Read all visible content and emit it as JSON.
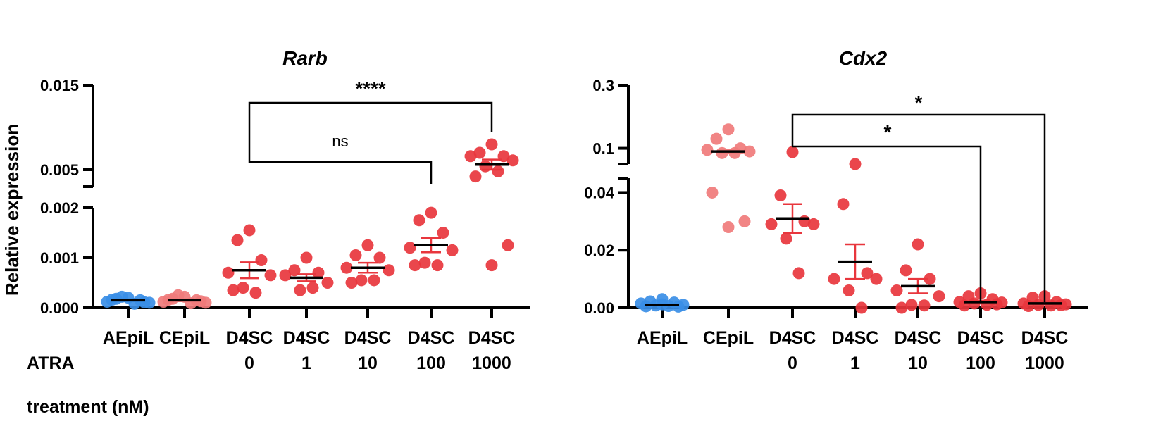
{
  "chart_data": [
    {
      "type": "scatter",
      "title": "Rarb",
      "ylabel": "Relative expression",
      "xlabel": "ATRA treatment (nM)",
      "xlabel_lines": [
        "ATRA",
        "treatment (nM)"
      ],
      "categories": [
        {
          "name": "AEpiL",
          "dose": "",
          "color": "#3a8ee6",
          "mean": 0.00015,
          "sem": 2e-05,
          "points": [
            0.0002,
            0.00018,
            0.00015,
            0.00012,
            0.0001,
            0.00022,
            8e-05,
            0.00016,
            0.00011
          ]
        },
        {
          "name": "CEpiL",
          "dose": "",
          "color": "#f07b7b",
          "mean": 0.00015,
          "sem": 2e-05,
          "points": [
            0.00022,
            0.00018,
            0.00015,
            0.00012,
            0.0001,
            0.00025,
            9e-05,
            0.00016,
            0.00013
          ]
        },
        {
          "name": "D4SC",
          "dose": "0",
          "color": "#e8363d",
          "mean": 0.00075,
          "sem": 0.00016,
          "points": [
            0.00155,
            0.00135,
            0.00095,
            0.0007,
            0.00065,
            0.0004,
            0.0003,
            0.00035
          ]
        },
        {
          "name": "D4SC",
          "dose": "1",
          "color": "#e8363d",
          "mean": 0.0006,
          "sem": 7e-05,
          "points": [
            0.001,
            0.00075,
            0.0007,
            0.00065,
            0.0005,
            0.00035,
            0.0004
          ]
        },
        {
          "name": "D4SC",
          "dose": "10",
          "color": "#e8363d",
          "mean": 0.0008,
          "sem": 0.0001,
          "points": [
            0.00125,
            0.00105,
            0.001,
            0.0008,
            0.00075,
            0.00055,
            0.00055,
            0.0005
          ]
        },
        {
          "name": "D4SC",
          "dose": "100",
          "color": "#e8363d",
          "mean": 0.00125,
          "sem": 0.00014,
          "points": [
            0.0019,
            0.00175,
            0.0015,
            0.0012,
            0.00115,
            0.0009,
            0.00085,
            0.00085
          ]
        },
        {
          "name": "D4SC",
          "dose": "1000",
          "color": "#e8363d",
          "mean": 0.0056,
          "sem": 0.0006,
          "points": [
            0.008,
            0.007,
            0.0066,
            0.0066,
            0.0061,
            0.0054,
            0.0048,
            0.0042,
            0.00125,
            0.00085
          ]
        }
      ],
      "y_segments": [
        {
          "range": [
            0.0,
            0.002
          ],
          "ticks": [
            0.0,
            0.001,
            0.002
          ],
          "tick_labels": [
            "0.000",
            "0.001",
            "0.002"
          ]
        },
        {
          "range": [
            0.003,
            0.015
          ],
          "ticks": [
            0.005,
            0.015
          ],
          "tick_labels": [
            "0.005",
            "0.015"
          ]
        }
      ],
      "annotations": [
        {
          "from_index": 2,
          "to_index": 6,
          "label": "****"
        },
        {
          "from_index": 2,
          "to_index": 5,
          "label": "ns"
        }
      ]
    },
    {
      "type": "scatter",
      "title": "Cdx2",
      "ylabel": "",
      "categories": [
        {
          "name": "AEpiL",
          "dose": "",
          "color": "#3a8ee6",
          "mean": 0.001,
          "sem": 0.0002,
          "points": [
            0.003,
            0.0022,
            0.0018,
            0.0015,
            0.001,
            0.0008,
            0.0006,
            0.0005,
            0.0004,
            0.0012
          ]
        },
        {
          "name": "CEpiL",
          "dose": "",
          "color": "#f07b7b",
          "mean": 0.09,
          "sem": 0.006,
          "points": [
            0.16,
            0.13,
            0.1,
            0.095,
            0.09,
            0.085,
            0.085,
            0.04,
            0.03,
            0.028
          ]
        },
        {
          "name": "D4SC",
          "dose": "0",
          "color": "#e8363d",
          "mean": 0.031,
          "sem": 0.005,
          "points": [
            0.088,
            0.039,
            0.03,
            0.029,
            0.029,
            0.024,
            0.012
          ]
        },
        {
          "name": "D4SC",
          "dose": "1",
          "color": "#e8363d",
          "mean": 0.016,
          "sem": 0.006,
          "points": [
            0.046,
            0.036,
            0.012,
            0.01,
            0.01,
            0.006,
            0.0
          ]
        },
        {
          "name": "D4SC",
          "dose": "10",
          "color": "#e8363d",
          "mean": 0.0075,
          "sem": 0.0025,
          "points": [
            0.022,
            0.013,
            0.01,
            0.006,
            0.004,
            0.001,
            0.0008,
            0.0
          ]
        },
        {
          "name": "D4SC",
          "dose": "100",
          "color": "#e8363d",
          "mean": 0.002,
          "sem": 0.0005,
          "points": [
            0.005,
            0.004,
            0.003,
            0.002,
            0.0018,
            0.0015,
            0.001,
            0.0008,
            0.0012
          ]
        },
        {
          "name": "D4SC",
          "dose": "1000",
          "color": "#e8363d",
          "mean": 0.0015,
          "sem": 0.0003,
          "points": [
            0.004,
            0.0035,
            0.002,
            0.0015,
            0.0012,
            0.001,
            0.0008,
            0.0006,
            0.0009
          ]
        }
      ],
      "y_segments": [
        {
          "range": [
            0.0,
            0.045
          ],
          "ticks": [
            0.0,
            0.02,
            0.04
          ],
          "tick_labels": [
            "0.00",
            "0.02",
            "0.04"
          ]
        },
        {
          "range": [
            0.05,
            0.3
          ],
          "ticks": [
            0.1,
            0.3
          ],
          "tick_labels": [
            "0.1",
            "0.3"
          ]
        }
      ],
      "annotations": [
        {
          "from_index": 2,
          "to_index": 6,
          "label": "*"
        },
        {
          "from_index": 2,
          "to_index": 5,
          "label": "*"
        }
      ]
    }
  ]
}
